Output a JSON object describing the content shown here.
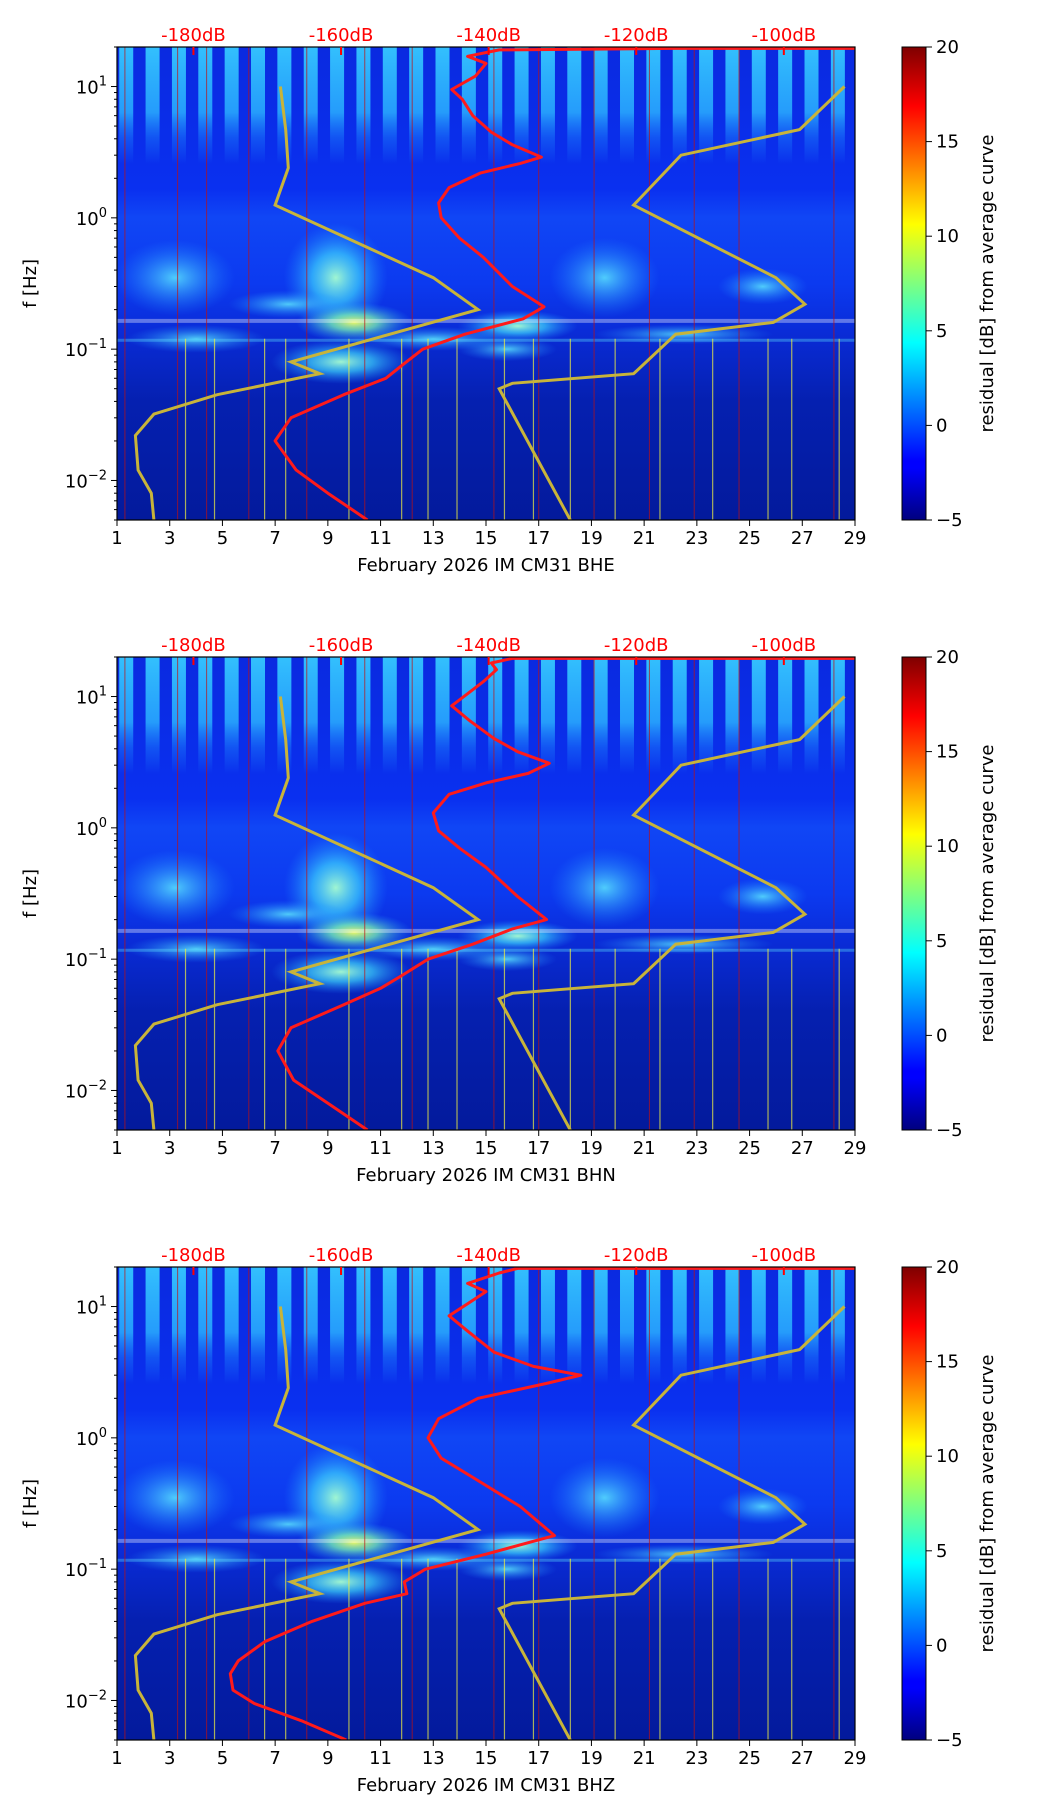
{
  "chart_data": [
    {
      "type": "heatmap",
      "panel": "BHE",
      "xlabel": "February 2026 IM CM31  BHE",
      "ylabel": "f [Hz]",
      "x_ticks": [
        "1",
        "3",
        "5",
        "7",
        "9",
        "11",
        "13",
        "15",
        "17",
        "19",
        "21",
        "23",
        "25",
        "27",
        "29"
      ],
      "xlim": [
        1,
        29
      ],
      "y_ticks": [
        {
          "value": 0.01,
          "label": "10",
          "exp": "−2"
        },
        {
          "value": 0.1,
          "label": "10",
          "exp": "−1"
        },
        {
          "value": 1,
          "label": "10",
          "exp": "0"
        },
        {
          "value": 10,
          "label": "10",
          "exp": "1"
        }
      ],
      "ylim": [
        0.005,
        20
      ],
      "yscale": "log",
      "db_ticks": [
        {
          "day": 3.9,
          "label": "-180dB"
        },
        {
          "day": 9.5,
          "label": "-160dB"
        },
        {
          "day": 15.1,
          "label": "-140dB"
        },
        {
          "day": 20.7,
          "label": "-120dB"
        },
        {
          "day": 26.3,
          "label": "-100dB"
        }
      ],
      "colorbar": {
        "label": "residual [dB] from average curve",
        "range": [
          -5,
          20
        ],
        "ticks": [
          "20",
          "15",
          "10",
          "5",
          "0",
          "−5"
        ]
      },
      "noise_model_low": [
        [
          2.4,
          0.005
        ],
        [
          2.3,
          0.008
        ],
        [
          1.8,
          0.012
        ],
        [
          1.7,
          0.022
        ],
        [
          2.4,
          0.032
        ],
        [
          4.8,
          0.045
        ],
        [
          8.7,
          0.065
        ],
        [
          7.6,
          0.08
        ],
        [
          14.7,
          0.2
        ],
        [
          13.0,
          0.35
        ],
        [
          7.0,
          1.25
        ],
        [
          7.5,
          2.4
        ],
        [
          7.4,
          4.7
        ],
        [
          7.2,
          10
        ]
      ],
      "noise_model_high": [
        [
          18.2,
          0.005
        ],
        [
          15.5,
          0.05
        ],
        [
          16.0,
          0.055
        ],
        [
          20.6,
          0.065
        ],
        [
          22.2,
          0.13
        ],
        [
          25.9,
          0.16
        ],
        [
          27.1,
          0.22
        ],
        [
          26.0,
          0.35
        ],
        [
          20.6,
          1.25
        ],
        [
          22.4,
          3.0
        ],
        [
          26.9,
          4.7
        ],
        [
          28.6,
          10
        ]
      ],
      "median_curve": [
        [
          10.5,
          0.005
        ],
        [
          9.0,
          0.008
        ],
        [
          7.8,
          0.012
        ],
        [
          7.0,
          0.02
        ],
        [
          7.6,
          0.03
        ],
        [
          9.6,
          0.045
        ],
        [
          11.2,
          0.06
        ],
        [
          11.8,
          0.075
        ],
        [
          12.6,
          0.1
        ],
        [
          14.2,
          0.13
        ],
        [
          16.4,
          0.17
        ],
        [
          17.2,
          0.21
        ],
        [
          16.0,
          0.3
        ],
        [
          14.9,
          0.5
        ],
        [
          14.0,
          0.7
        ],
        [
          13.3,
          1.0
        ],
        [
          13.2,
          1.3
        ],
        [
          13.6,
          1.7
        ],
        [
          14.8,
          2.2
        ],
        [
          16.3,
          2.6
        ],
        [
          17.1,
          2.9
        ],
        [
          16.0,
          3.6
        ],
        [
          15.2,
          4.5
        ],
        [
          14.5,
          6.0
        ],
        [
          14.1,
          8.0
        ],
        [
          13.7,
          9.5
        ],
        [
          14.6,
          12
        ],
        [
          15.0,
          15
        ],
        [
          14.3,
          17
        ],
        [
          15.5,
          19
        ],
        [
          22.0,
          19.5
        ],
        [
          29,
          19.5
        ]
      ],
      "red_lines": [
        1.3,
        3.3,
        4.4,
        6.0,
        8.2,
        10.4,
        12.2,
        15.3,
        17.0,
        19.1,
        21.2,
        22.9,
        24.6,
        28.2
      ],
      "yellow_lines": [
        3.6,
        4.7,
        6.6,
        7.4,
        9.8,
        11.8,
        12.8,
        13.9,
        15.7,
        16.8,
        18.2,
        19.9,
        21.6,
        23.6,
        25.7,
        26.6,
        28.4
      ]
    },
    {
      "type": "heatmap",
      "panel": "BHN",
      "xlabel": "February 2026 IM CM31  BHN",
      "ylabel": "f [Hz]",
      "x_ticks": [
        "1",
        "3",
        "5",
        "7",
        "9",
        "11",
        "13",
        "15",
        "17",
        "19",
        "21",
        "23",
        "25",
        "27",
        "29"
      ],
      "xlim": [
        1,
        29
      ],
      "y_ticks": [
        {
          "value": 0.01,
          "label": "10",
          "exp": "−2"
        },
        {
          "value": 0.1,
          "label": "10",
          "exp": "−1"
        },
        {
          "value": 1,
          "label": "10",
          "exp": "0"
        },
        {
          "value": 10,
          "label": "10",
          "exp": "1"
        }
      ],
      "ylim": [
        0.005,
        20
      ],
      "yscale": "log",
      "db_ticks": [
        {
          "day": 3.9,
          "label": "-180dB"
        },
        {
          "day": 9.5,
          "label": "-160dB"
        },
        {
          "day": 15.1,
          "label": "-140dB"
        },
        {
          "day": 20.7,
          "label": "-120dB"
        },
        {
          "day": 26.3,
          "label": "-100dB"
        }
      ],
      "colorbar": {
        "label": "residual [dB] from average curve",
        "range": [
          -5,
          20
        ],
        "ticks": [
          "20",
          "15",
          "10",
          "5",
          "0",
          "−5"
        ]
      },
      "noise_model_low": [
        [
          2.4,
          0.005
        ],
        [
          2.3,
          0.008
        ],
        [
          1.8,
          0.012
        ],
        [
          1.7,
          0.022
        ],
        [
          2.4,
          0.032
        ],
        [
          4.8,
          0.045
        ],
        [
          8.7,
          0.065
        ],
        [
          7.6,
          0.08
        ],
        [
          14.7,
          0.2
        ],
        [
          13.0,
          0.35
        ],
        [
          7.0,
          1.25
        ],
        [
          7.5,
          2.4
        ],
        [
          7.4,
          4.7
        ],
        [
          7.2,
          10
        ]
      ],
      "noise_model_high": [
        [
          18.2,
          0.005
        ],
        [
          15.5,
          0.05
        ],
        [
          16.0,
          0.055
        ],
        [
          20.6,
          0.065
        ],
        [
          22.2,
          0.13
        ],
        [
          25.9,
          0.16
        ],
        [
          27.1,
          0.22
        ],
        [
          26.0,
          0.35
        ],
        [
          20.6,
          1.25
        ],
        [
          22.4,
          3.0
        ],
        [
          26.9,
          4.7
        ],
        [
          28.6,
          10
        ]
      ],
      "median_curve": [
        [
          10.5,
          0.005
        ],
        [
          9.0,
          0.008
        ],
        [
          7.7,
          0.012
        ],
        [
          7.1,
          0.02
        ],
        [
          7.6,
          0.03
        ],
        [
          9.6,
          0.045
        ],
        [
          11.0,
          0.06
        ],
        [
          11.8,
          0.075
        ],
        [
          12.8,
          0.1
        ],
        [
          14.5,
          0.13
        ],
        [
          16.0,
          0.17
        ],
        [
          17.3,
          0.2
        ],
        [
          16.2,
          0.3
        ],
        [
          15.0,
          0.5
        ],
        [
          14.0,
          0.7
        ],
        [
          13.2,
          0.95
        ],
        [
          13.0,
          1.3
        ],
        [
          13.6,
          1.8
        ],
        [
          15.0,
          2.2
        ],
        [
          16.6,
          2.6
        ],
        [
          17.4,
          3.1
        ],
        [
          16.2,
          3.8
        ],
        [
          15.3,
          4.8
        ],
        [
          14.4,
          6.5
        ],
        [
          13.7,
          8.5
        ],
        [
          14.3,
          10.5
        ],
        [
          14.9,
          13
        ],
        [
          15.4,
          16
        ],
        [
          15.2,
          18
        ],
        [
          16.0,
          19.5
        ],
        [
          29,
          19.5
        ]
      ],
      "red_lines": [
        1.3,
        3.3,
        4.4,
        6.0,
        8.2,
        10.4,
        12.2,
        15.3,
        17.0,
        19.1,
        21.2,
        22.9,
        24.6,
        28.2
      ],
      "yellow_lines": [
        3.6,
        4.7,
        6.6,
        7.4,
        9.8,
        11.8,
        12.8,
        13.9,
        15.7,
        16.8,
        18.2,
        19.9,
        21.6,
        23.6,
        25.7,
        26.6,
        28.4
      ]
    },
    {
      "type": "heatmap",
      "panel": "BHZ",
      "xlabel": "February 2026 IM CM31  BHZ",
      "ylabel": "f [Hz]",
      "x_ticks": [
        "1",
        "3",
        "5",
        "7",
        "9",
        "11",
        "13",
        "15",
        "17",
        "19",
        "21",
        "23",
        "25",
        "27",
        "29"
      ],
      "xlim": [
        1,
        29
      ],
      "y_ticks": [
        {
          "value": 0.01,
          "label": "10",
          "exp": "−2"
        },
        {
          "value": 0.1,
          "label": "10",
          "exp": "−1"
        },
        {
          "value": 1,
          "label": "10",
          "exp": "0"
        },
        {
          "value": 10,
          "label": "10",
          "exp": "1"
        }
      ],
      "ylim": [
        0.005,
        20
      ],
      "yscale": "log",
      "db_ticks": [
        {
          "day": 3.9,
          "label": "-180dB"
        },
        {
          "day": 9.5,
          "label": "-160dB"
        },
        {
          "day": 15.1,
          "label": "-140dB"
        },
        {
          "day": 20.7,
          "label": "-120dB"
        },
        {
          "day": 26.3,
          "label": "-100dB"
        }
      ],
      "colorbar": {
        "label": "residual [dB] from average curve",
        "range": [
          -5,
          20
        ],
        "ticks": [
          "20",
          "15",
          "10",
          "5",
          "0",
          "−5"
        ]
      },
      "noise_model_low": [
        [
          2.4,
          0.005
        ],
        [
          2.3,
          0.008
        ],
        [
          1.8,
          0.012
        ],
        [
          1.7,
          0.022
        ],
        [
          2.4,
          0.032
        ],
        [
          4.8,
          0.045
        ],
        [
          8.7,
          0.065
        ],
        [
          7.6,
          0.08
        ],
        [
          14.7,
          0.2
        ],
        [
          13.0,
          0.35
        ],
        [
          7.0,
          1.25
        ],
        [
          7.5,
          2.4
        ],
        [
          7.4,
          4.7
        ],
        [
          7.2,
          10
        ]
      ],
      "noise_model_high": [
        [
          18.2,
          0.005
        ],
        [
          15.5,
          0.05
        ],
        [
          16.0,
          0.055
        ],
        [
          20.6,
          0.065
        ],
        [
          22.2,
          0.13
        ],
        [
          25.9,
          0.16
        ],
        [
          27.1,
          0.22
        ],
        [
          26.0,
          0.35
        ],
        [
          20.6,
          1.25
        ],
        [
          22.4,
          3.0
        ],
        [
          26.9,
          4.7
        ],
        [
          28.6,
          10
        ]
      ],
      "median_curve": [
        [
          9.7,
          0.005
        ],
        [
          8.0,
          0.007
        ],
        [
          6.2,
          0.0095
        ],
        [
          5.4,
          0.012
        ],
        [
          5.3,
          0.016
        ],
        [
          5.6,
          0.02
        ],
        [
          6.6,
          0.028
        ],
        [
          8.4,
          0.04
        ],
        [
          10.4,
          0.055
        ],
        [
          12.0,
          0.065
        ],
        [
          11.9,
          0.08
        ],
        [
          12.7,
          0.1
        ],
        [
          15.0,
          0.13
        ],
        [
          17.6,
          0.18
        ],
        [
          16.3,
          0.3
        ],
        [
          14.5,
          0.5
        ],
        [
          13.3,
          0.7
        ],
        [
          12.8,
          1.0
        ],
        [
          13.2,
          1.4
        ],
        [
          14.7,
          2.0
        ],
        [
          17.3,
          2.6
        ],
        [
          18.6,
          3.0
        ],
        [
          16.8,
          3.5
        ],
        [
          15.3,
          4.5
        ],
        [
          14.3,
          6.5
        ],
        [
          13.6,
          8.5
        ],
        [
          14.3,
          10.5
        ],
        [
          15.0,
          13
        ],
        [
          14.3,
          15
        ],
        [
          15.5,
          18
        ],
        [
          16.2,
          19.5
        ],
        [
          29,
          19.5
        ]
      ],
      "red_lines": [
        1.3,
        3.3,
        4.4,
        6.0,
        8.2,
        10.4,
        12.2,
        15.3,
        17.0,
        19.1,
        21.2,
        22.9,
        24.6,
        28.2
      ],
      "yellow_lines": [
        3.6,
        4.7,
        6.6,
        7.4,
        9.8,
        11.8,
        12.8,
        13.9,
        15.7,
        16.8,
        18.2,
        19.9,
        21.6,
        23.6,
        25.7,
        26.6,
        28.4
      ]
    }
  ]
}
